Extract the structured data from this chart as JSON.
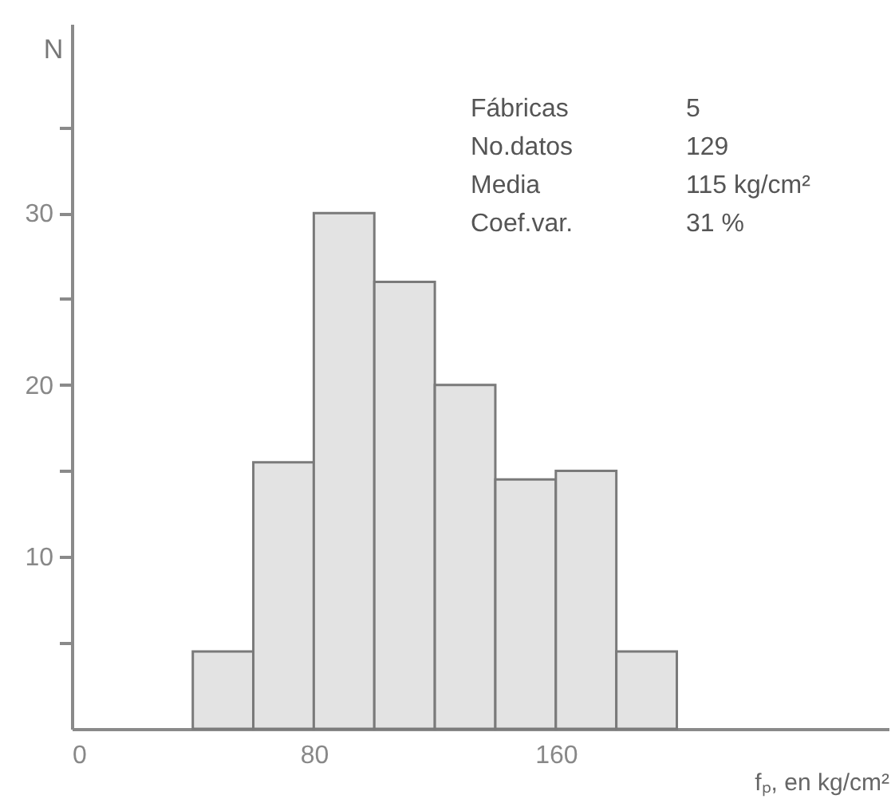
{
  "chart_data": {
    "type": "histogram",
    "bins": [
      40,
      60,
      80,
      100,
      120,
      140,
      160,
      180,
      200
    ],
    "values": [
      4.5,
      15.5,
      30,
      26,
      20,
      14.5,
      15,
      4.5
    ],
    "color": "#e3e3e3",
    "xlabel": "fₚ, en kg/cm²",
    "ylabel": "N",
    "xlim": [
      0,
      270
    ],
    "xticks": [
      0,
      80,
      160
    ],
    "ylim": [
      0,
      41
    ],
    "yticks": [
      {
        "value": 5,
        "label": null
      },
      10,
      {
        "value": 15,
        "label": null
      },
      20,
      {
        "value": 25,
        "label": null
      },
      30,
      {
        "value": 35,
        "label": null
      }
    ],
    "annotations": [
      "Fábricas",
      "5",
      "No.datos",
      "129",
      "Media",
      "115 kg/cm²",
      "Coef.var.",
      "31 %"
    ],
    "grid": false
  }
}
